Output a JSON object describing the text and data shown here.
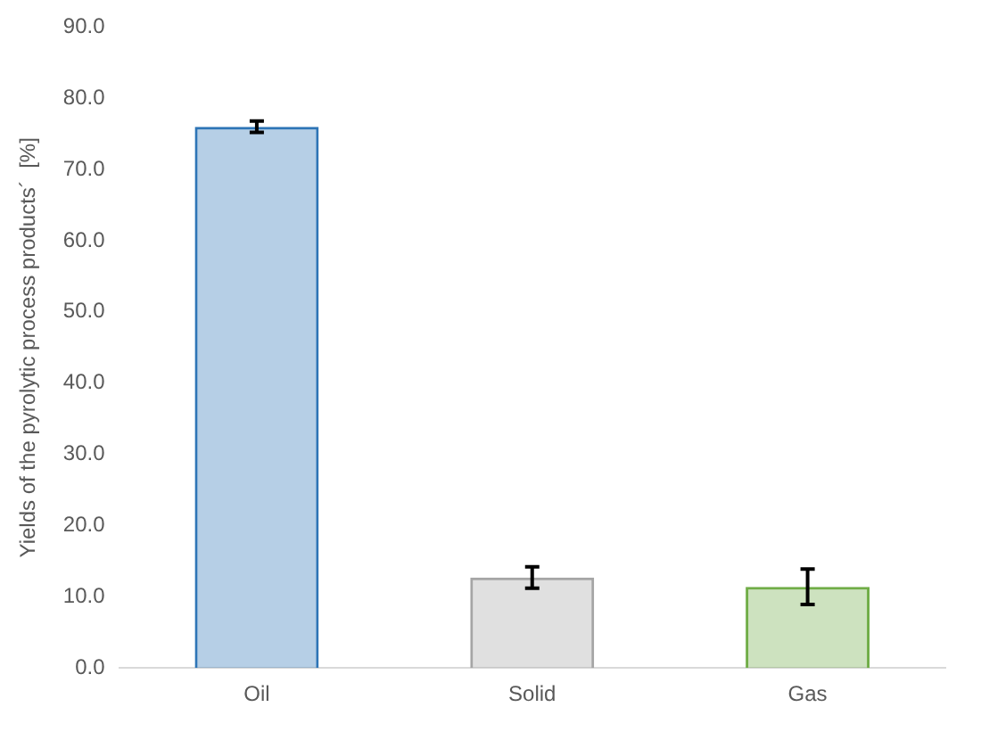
{
  "chart_data": {
    "type": "bar",
    "ylabel": "Yields of the pyrolytic process products´  [%]",
    "categories": [
      "Oil",
      "Solid",
      "Gas"
    ],
    "values": [
      76.0,
      12.7,
      11.4
    ],
    "colors": [
      "#2e75b6",
      "#a5a5a5",
      "#70ad47"
    ],
    "errors": [
      0.8,
      1.5,
      2.5
    ],
    "ylim": [
      0,
      90
    ],
    "yticks": [
      {
        "value": 0,
        "label": "0.0"
      },
      {
        "value": 10,
        "label": "10.0"
      },
      {
        "value": 20,
        "label": "20.0"
      },
      {
        "value": 30,
        "label": "30.0"
      },
      {
        "value": 40,
        "label": "40.0"
      },
      {
        "value": 50,
        "label": "50.0"
      },
      {
        "value": 60,
        "label": "60.0"
      },
      {
        "value": 70,
        "label": "70.0"
      },
      {
        "value": 80,
        "label": "80.0"
      },
      {
        "value": 90,
        "label": "90.0"
      }
    ],
    "grid": false,
    "legend": false
  }
}
